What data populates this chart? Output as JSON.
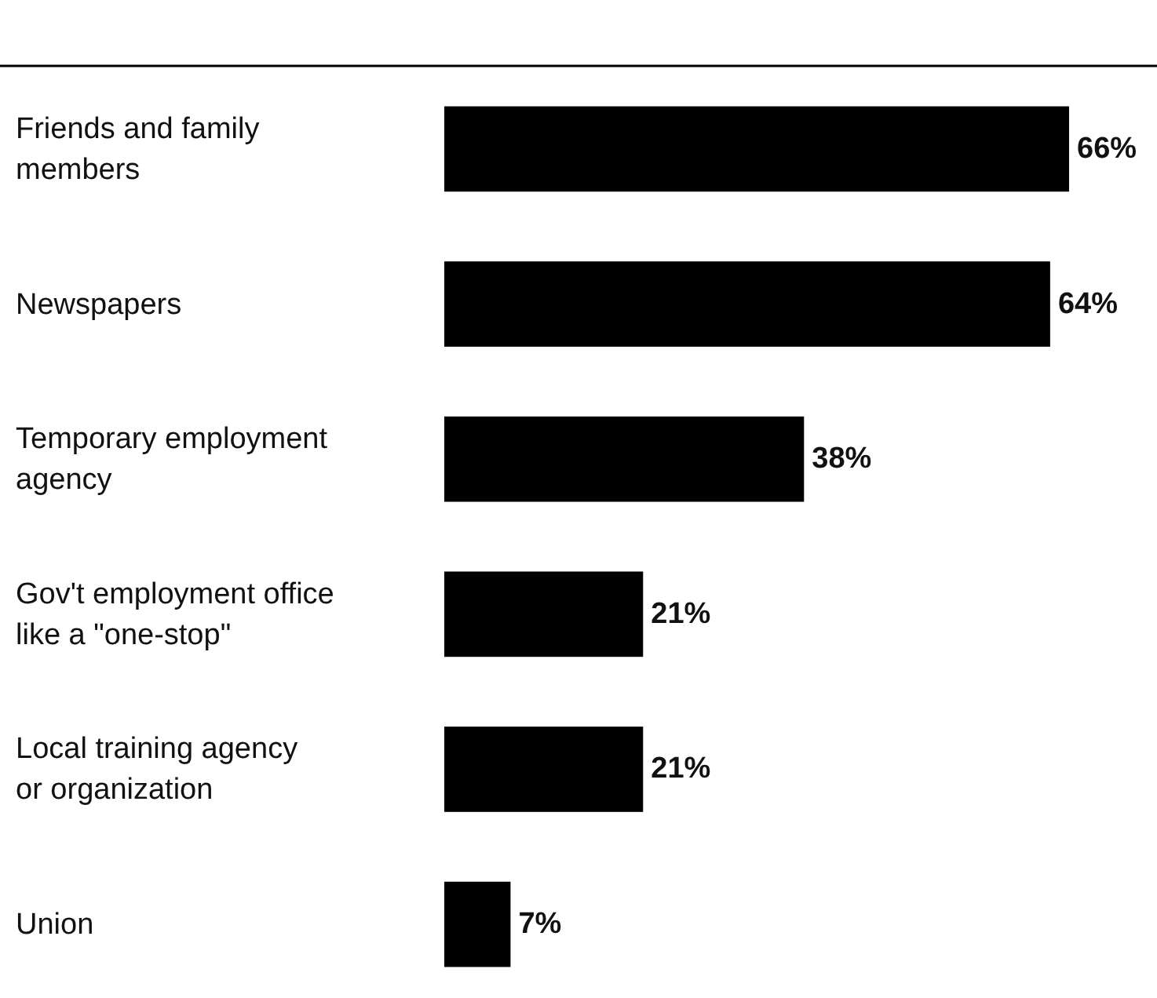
{
  "chart_data": {
    "type": "bar",
    "orientation": "horizontal",
    "categories": [
      "Friends and family members",
      "Newspapers",
      "Temporary employment agency",
      "Gov't employment office like a \"one-stop\"",
      "Local training agency or organization",
      "Union"
    ],
    "values": [
      66,
      64,
      38,
      21,
      21,
      7
    ],
    "value_labels": [
      "66%",
      "64%",
      "38%",
      "21%",
      "21%",
      "7%"
    ],
    "color": "#000000",
    "xlim": [
      0,
      66
    ],
    "tick_labels": "y"
  }
}
